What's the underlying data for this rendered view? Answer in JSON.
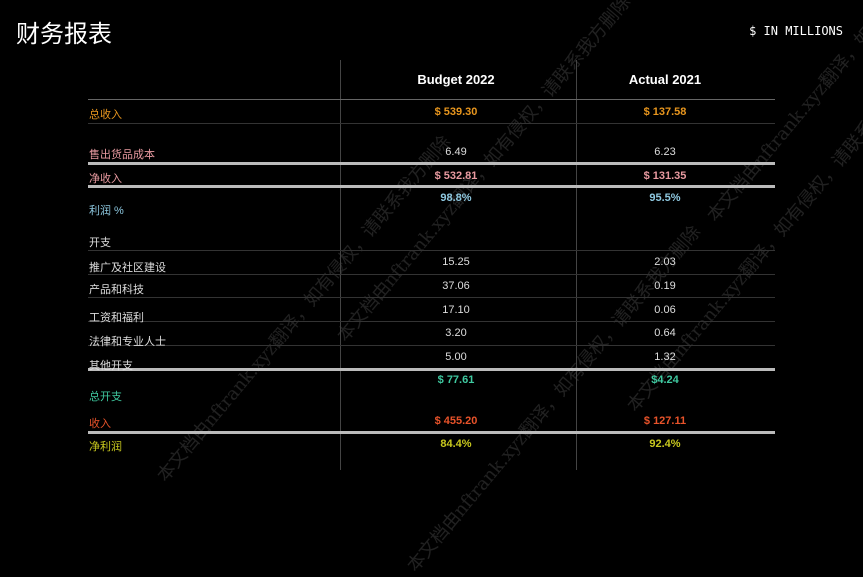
{
  "title": "财务报表",
  "units": "$ IN MILLIONS",
  "columns": [
    "Budget 2022",
    "Actual 2021"
  ],
  "colors": {
    "revenue": "#e8961e",
    "cogs": "#e89aa0",
    "margin": "#8ec8e0",
    "expenses_total": "#3fc9a0",
    "income": "#e8532a",
    "net": "#c8c81e",
    "default": "#dddddd"
  },
  "rows": [
    {
      "label": "总收入",
      "b": "$ 539.30",
      "a": "$ 137.58"
    },
    {
      "label": "售出货品成本",
      "b": "6.49",
      "a": "6.23"
    },
    {
      "label": "净收入",
      "b": "$ 532.81",
      "a": "$ 131.35"
    },
    {
      "label": "利润 %",
      "b": "98.8%",
      "a": "95.5%"
    },
    {
      "label": "开支"
    },
    {
      "label": "推广及社区建设",
      "b": "15.25",
      "a": "2.03"
    },
    {
      "label": "产品和科技",
      "b": "37.06",
      "a": "0.19"
    },
    {
      "label": "工资和福利",
      "b": "17.10",
      "a": "0.06"
    },
    {
      "label": "法律和专业人士",
      "b": "3.20",
      "a": "0.64"
    },
    {
      "label": "其他开支",
      "b": "5.00",
      "a": "1.32"
    },
    {
      "label": "总开支",
      "b": "$ 77.61",
      "a": "$4.24"
    },
    {
      "label": "收入",
      "b": "$ 455.20",
      "a": "$ 127.11"
    },
    {
      "label": "净利润",
      "b": "84.4%",
      "a": "92.4%"
    }
  ],
  "watermark": "本文档由nftrank.xyz翻译，如有侵权，请联系我方删除"
}
